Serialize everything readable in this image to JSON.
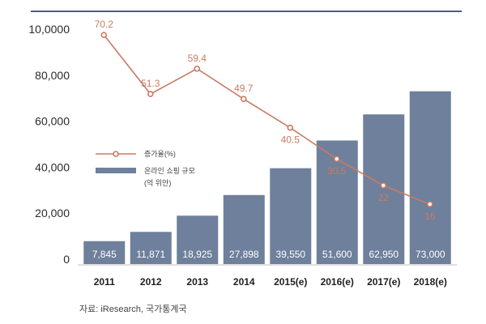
{
  "chart_data": {
    "type": "bar",
    "categories": [
      "2011",
      "2012",
      "2013",
      "2014",
      "2015(e)",
      "2016(e)",
      "2017(e)",
      "2018(e)"
    ],
    "series": [
      {
        "name": "온라인 쇼핑 규모",
        "unit": "(억 위안)",
        "type": "bar",
        "values": [
          7845,
          11871,
          18925,
          27898,
          39550,
          51600,
          62950,
          73000
        ],
        "labels": [
          "7,845",
          "11,871",
          "18,925",
          "27,898",
          "39,550",
          "51,600",
          "62,950",
          "73,000"
        ]
      },
      {
        "name": "증가율(%)",
        "type": "line",
        "values": [
          70.2,
          51.3,
          59.4,
          49.7,
          40.5,
          30.5,
          22,
          16
        ],
        "labels": [
          "70.2",
          "51.3",
          "59.4",
          "49.7",
          "40.5",
          "30.5",
          "22",
          "16"
        ]
      }
    ],
    "yticks": [
      "0",
      "20,000",
      "40,000",
      "60,000",
      "80,000",
      "10,0000"
    ],
    "ylim": [
      0,
      100000
    ],
    "legend_position": "left-middle",
    "grid": false,
    "colors": {
      "bar": "#6e809b",
      "line": "#c97b63",
      "top_rule": "#4b5d7c"
    }
  },
  "source": "자료: iResearch, 국가통계국"
}
